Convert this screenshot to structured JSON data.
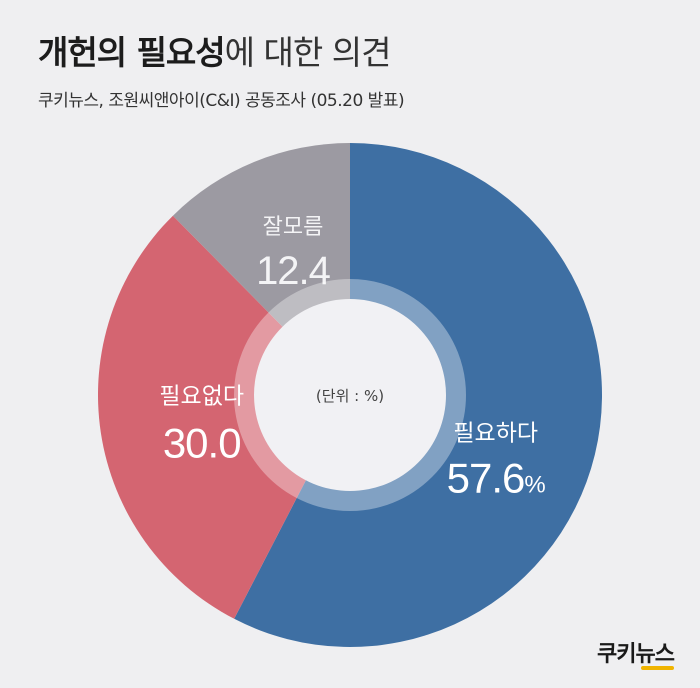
{
  "header": {
    "title_bold": "개헌의 필요성",
    "title_rest": "에 대한 의견",
    "subtitle": "쿠키뉴스, 조원씨앤아이(C&I) 공동조사 (05.20 발표)"
  },
  "logo": {
    "text": "쿠키뉴스"
  },
  "chart_data": {
    "type": "pie",
    "title": "개헌의 필요성에 대한 의견",
    "subtitle": "쿠키뉴스, 조원씨앤아이(C&I) 공동조사 (05.20 발표)",
    "unit_note": "(단위 : %)",
    "slices": [
      {
        "label": "필요하다",
        "value": 57.6,
        "display": "57.6",
        "suffix": "%",
        "color": "#3e6fa3"
      },
      {
        "label": "필요없다",
        "value": 30.0,
        "display": "30.0",
        "suffix": "",
        "color": "#d46571"
      },
      {
        "label": "잘모름",
        "value": 12.4,
        "display": "12.4",
        "suffix": "",
        "color": "#9c9aa2"
      }
    ],
    "start": "top",
    "direction": "clockwise",
    "donut": true,
    "center_color": "#f1f1f4"
  }
}
